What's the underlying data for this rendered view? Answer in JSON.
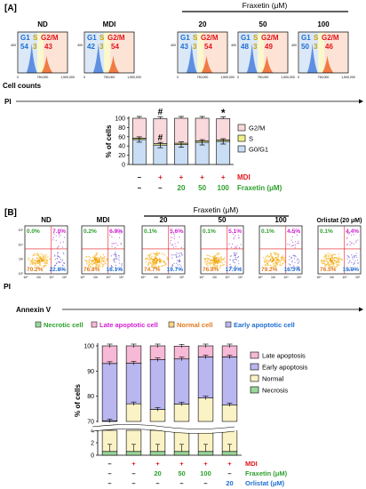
{
  "panel_a": {
    "label": "[A]",
    "fraxetin_header": "Fraxetin (μM)",
    "cell_counts_label": "Cell counts",
    "pi_label": "PI",
    "x_ticks": [
      "0",
      "750,000",
      "1,500,000"
    ],
    "y_tick": "400",
    "histograms": [
      {
        "title": "ND",
        "g1": "54",
        "s": "3",
        "g2m": "43"
      },
      {
        "title": "MDI",
        "g1": "42",
        "s": "3",
        "g2m": "54"
      },
      {
        "title": "20",
        "g1": "43",
        "s": "3",
        "g2m": "54"
      },
      {
        "title": "50",
        "g1": "48",
        "s": "3",
        "g2m": "49"
      },
      {
        "title": "100",
        "g1": "50",
        "s": "3",
        "g2m": "46"
      }
    ],
    "phase_labels": {
      "g1": "G1",
      "s": "S",
      "g2m": "G2/M"
    }
  },
  "panel_a_chart": {
    "chart_data": {
      "type": "bar",
      "stacked": true,
      "categories": [
        "ND",
        "MDI",
        "20",
        "50",
        "100"
      ],
      "series": [
        {
          "name": "G0/G1",
          "values": [
            54,
            42,
            43,
            48,
            50
          ]
        },
        {
          "name": "S",
          "values": [
            3,
            3,
            3,
            3,
            3
          ]
        },
        {
          "name": "G2/M",
          "values": [
            43,
            54,
            54,
            49,
            46
          ]
        }
      ],
      "ylabel": "% of cells",
      "ylim": [
        0,
        100
      ],
      "y_ticks": [
        "0",
        "20",
        "40",
        "60",
        "80",
        "100"
      ],
      "legend": "right",
      "annotations": [
        "#",
        "#",
        "*"
      ]
    },
    "mdi_row": [
      "–",
      "+",
      "+",
      "+",
      "+"
    ],
    "mdi_label": "MDI",
    "frax_row": [
      "–",
      "–",
      "20",
      "50",
      "100"
    ],
    "frax_label": "Fraxetin (μM)"
  },
  "panel_b": {
    "label": "[B]",
    "fraxetin_header": "Fraxetin (μM)",
    "pi_label": "PI",
    "annexin_label": "Annexin V",
    "axis_ticks": [
      "10⁰",
      "10²",
      "10⁴",
      "10⁶"
    ],
    "scatters": [
      {
        "title": "ND",
        "tl": "0.0%",
        "tr": "7.0%",
        "bl": "70.2%",
        "br": "22.8%"
      },
      {
        "title": "MDI",
        "tl": "0.2%",
        "tr": "6.9%",
        "bl": "76.8%",
        "br": "16.1%"
      },
      {
        "title": "20",
        "tl": "0.1%",
        "tr": "5.6%",
        "bl": "74.7%",
        "br": "19.7%"
      },
      {
        "title": "50",
        "tl": "0.1%",
        "tr": "5.1%",
        "bl": "76.8%",
        "br": "17.9%"
      },
      {
        "title": "100",
        "tl": "0.1%",
        "tr": "4.5%",
        "bl": "79.2%",
        "br": "16.3%"
      },
      {
        "title": "Orlistat (20 μM)",
        "tl": "0.1%",
        "tr": "4.4%",
        "bl": "76.5%",
        "br": "19.0%"
      }
    ],
    "legend": {
      "necrotic": "Necrotic cell",
      "late": "Late apoptotic cell",
      "normal": "Normal cell",
      "early": "Early apoptotic cell"
    }
  },
  "panel_b_chart": {
    "chart_data": {
      "type": "bar",
      "stacked": true,
      "categories": [
        "ND",
        "MDI",
        "20",
        "50",
        "100",
        "Orlistat"
      ],
      "series": [
        {
          "name": "Necrosis",
          "values": [
            0.0,
            0.2,
            0.1,
            0.1,
            0.1,
            0.1
          ]
        },
        {
          "name": "Normal",
          "values": [
            70.2,
            76.8,
            74.7,
            76.8,
            79.2,
            76.5
          ]
        },
        {
          "name": "Early apoptosis",
          "values": [
            22.8,
            16.1,
            19.7,
            17.9,
            16.3,
            19.0
          ]
        },
        {
          "name": "Late apoptosis",
          "values": [
            7.0,
            6.9,
            5.6,
            5.1,
            4.5,
            4.4
          ]
        }
      ],
      "ylabel": "% of cells",
      "y_ticks": [
        "0",
        "2",
        "4",
        "70",
        "80",
        "90",
        "100"
      ],
      "axis_break": true,
      "legend": "right"
    },
    "mdi_row": [
      "–",
      "+",
      "+",
      "+",
      "+",
      "+"
    ],
    "mdi_label": "MDI",
    "frax_row": [
      "–",
      "–",
      "20",
      "50",
      "100",
      "–"
    ],
    "frax_label": "Fraxetin (μM)",
    "orl_row": [
      "–",
      "–",
      "–",
      "–",
      "–",
      "20"
    ],
    "orl_label": "Orlistat (μM)"
  },
  "colors": {
    "g1": "#a9c8f0",
    "s": "#f3ee8c",
    "g2m": "#f6a27a",
    "g0g1_bar": "#c9ddf4",
    "s_bar": "#eef08a",
    "g2m_bar": "#f9d9dc",
    "necrosis": "#99d89a",
    "normal": "#fbf3c6",
    "early": "#b9b6f0",
    "late": "#f6b9d6",
    "blue_text": "#1f6fd1",
    "red_text": "#e3161b",
    "green_text": "#2ca02c",
    "magenta_text": "#d11fd1",
    "orange_text": "#e07a1f"
  }
}
